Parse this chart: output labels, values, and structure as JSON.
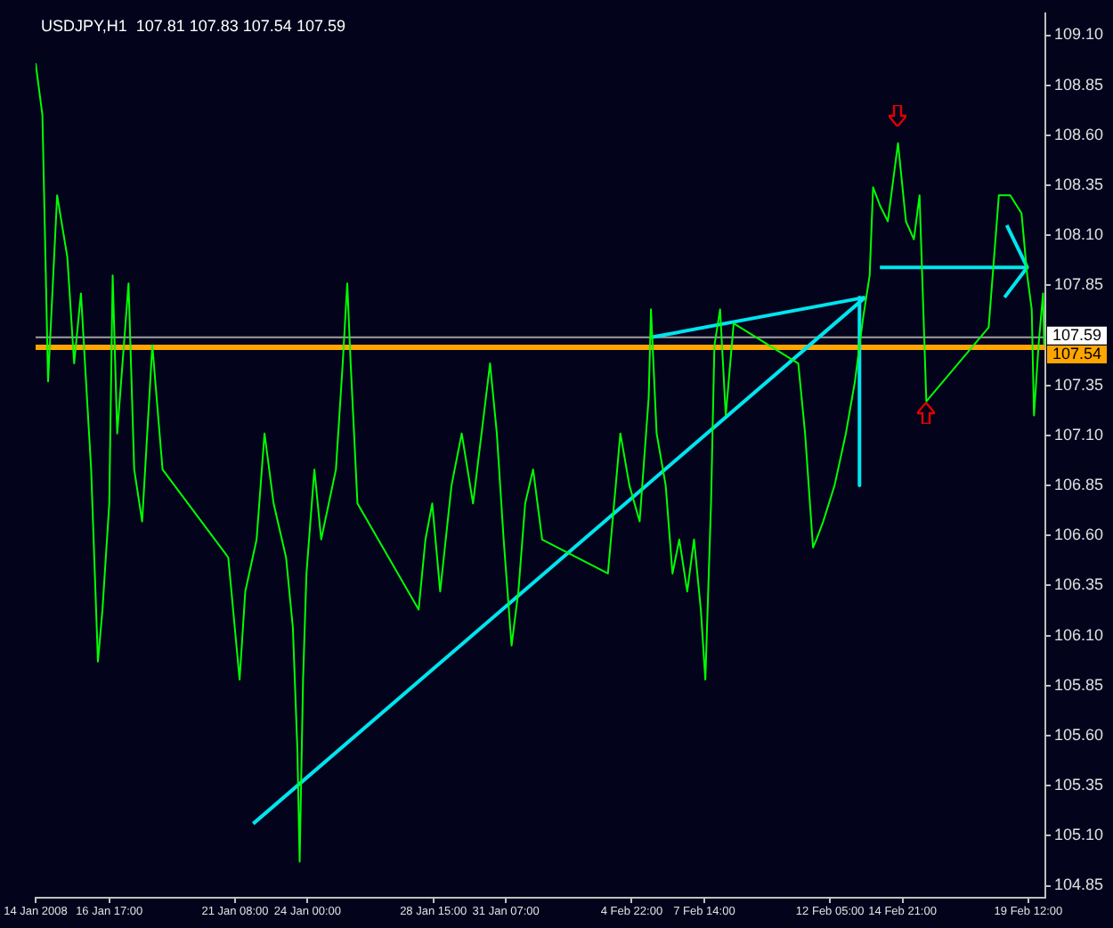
{
  "chart_data": {
    "type": "line",
    "title": "USDJPY,H1  107.81 107.83 107.54 107.59",
    "marker": "none",
    "grid": false,
    "legend": false,
    "xlim": [
      "2008-01-14T00:00",
      "2008-02-20T03:00"
    ],
    "ylim": [
      104.79,
      109.21
    ],
    "xticks": [
      {
        "value": "2008-01-14T00:00",
        "label": "14 Jan 2008"
      },
      {
        "value": "2008-01-16T17:00",
        "label": "16 Jan 17:00"
      },
      {
        "value": "2008-01-21T08:00",
        "label": "21 Jan 08:00"
      },
      {
        "value": "2008-01-24T00:00",
        "label": "24 Jan 00:00"
      },
      {
        "value": "2008-01-28T15:00",
        "label": "28 Jan 15:00"
      },
      {
        "value": "2008-01-31T07:00",
        "label": "31 Jan 07:00"
      },
      {
        "value": "2008-02-04T22:00",
        "label": "4 Feb 22:00"
      },
      {
        "value": "2008-02-07T14:00",
        "label": "7 Feb 14:00"
      },
      {
        "value": "2008-02-12T05:00",
        "label": "12 Feb 05:00"
      },
      {
        "value": "2008-02-14T21:00",
        "label": "14 Feb 21:00"
      },
      {
        "value": "2008-02-19T12:00",
        "label": "19 Feb 12:00"
      }
    ],
    "yticks": [
      {
        "value": 109.1,
        "label": "109.10"
      },
      {
        "value": 108.85,
        "label": "108.85"
      },
      {
        "value": 108.6,
        "label": "108.60"
      },
      {
        "value": 108.35,
        "label": "108.35"
      },
      {
        "value": 108.1,
        "label": "108.10"
      },
      {
        "value": 107.85,
        "label": "107.85"
      },
      {
        "value": 107.35,
        "label": "107.35"
      },
      {
        "value": 107.1,
        "label": "107.10"
      },
      {
        "value": 106.85,
        "label": "106.85"
      },
      {
        "value": 106.6,
        "label": "106.60"
      },
      {
        "value": 106.35,
        "label": "106.35"
      },
      {
        "value": 106.1,
        "label": "106.10"
      },
      {
        "value": 105.85,
        "label": "105.85"
      },
      {
        "value": 105.6,
        "label": "105.60"
      },
      {
        "value": 105.35,
        "label": "105.35"
      },
      {
        "value": 105.1,
        "label": "105.10"
      },
      {
        "value": 104.85,
        "label": "104.85"
      }
    ],
    "ref_lines": [
      {
        "axis": "y",
        "value": 107.59,
        "label": "107.59",
        "color": "#a0a0a0"
      },
      {
        "axis": "y",
        "value": 107.54,
        "label": "107.54",
        "color": "#ffa500"
      }
    ],
    "series": [
      {
        "color": "#00ff00",
        "x": [
          "2008-01-14T00:00",
          "2008-01-14T03:00",
          "2008-01-14T06:00",
          "2008-01-14T11:00",
          "2008-01-14T19:00",
          "2008-01-15T04:00",
          "2008-01-15T10:00",
          "2008-01-15T16:00",
          "2008-01-16T01:00",
          "2008-01-16T07:00",
          "2008-01-16T11:00",
          "2008-01-16T17:00",
          "2008-01-16T20:00",
          "2008-01-17T00:00",
          "2008-01-17T10:00",
          "2008-01-17T15:00",
          "2008-01-17T22:00",
          "2008-01-18T07:00",
          "2008-01-18T16:00",
          "2008-01-21T02:00",
          "2008-01-21T12:00",
          "2008-01-21T17:00",
          "2008-01-22T03:00",
          "2008-01-22T10:00",
          "2008-01-22T18:00",
          "2008-01-23T05:00",
          "2008-01-23T11:00",
          "2008-01-23T15:00",
          "2008-01-23T17:00",
          "2008-01-23T20:00",
          "2008-01-23T23:00",
          "2008-01-24T06:00",
          "2008-01-24T12:00",
          "2008-01-25T01:00",
          "2008-01-25T07:00",
          "2008-01-25T11:00",
          "2008-01-25T14:00",
          "2008-01-25T20:00",
          "2008-01-28T02:00",
          "2008-01-28T08:00",
          "2008-01-28T14:00",
          "2008-01-28T21:00",
          "2008-01-29T07:00",
          "2008-01-29T16:00",
          "2008-01-30T02:00",
          "2008-01-30T17:00",
          "2008-01-30T23:00",
          "2008-01-31T05:00",
          "2008-01-31T12:00",
          "2008-01-31T18:00",
          "2008-02-01T00:00",
          "2008-02-01T07:00",
          "2008-02-01T15:00",
          "2008-02-04T01:00",
          "2008-02-04T12:00",
          "2008-02-04T20:00",
          "2008-02-05T05:00",
          "2008-02-05T13:00",
          "2008-02-05T15:00",
          "2008-02-05T20:00",
          "2008-02-06T04:00",
          "2008-02-06T10:00",
          "2008-02-06T16:00",
          "2008-02-06T23:00",
          "2008-02-07T05:00",
          "2008-02-07T11:00",
          "2008-02-07T15:00",
          "2008-02-07T20:00",
          "2008-02-07T23:00",
          "2008-02-08T04:00",
          "2008-02-08T09:00",
          "2008-02-08T16:00",
          "2008-02-11T01:00",
          "2008-02-11T07:00",
          "2008-02-11T14:00",
          "2008-02-11T17:00",
          "2008-02-11T23:00",
          "2008-02-12T09:00",
          "2008-02-12T19:00",
          "2008-02-13T03:00",
          "2008-02-13T10:00",
          "2008-02-13T16:00",
          "2008-02-13T19:00",
          "2008-02-14T01:00",
          "2008-02-14T08:00",
          "2008-02-14T17:00",
          "2008-02-15T00:00",
          "2008-02-15T07:00",
          "2008-02-15T12:00",
          "2008-02-15T18:00",
          "2008-02-18T01:00",
          "2008-02-18T10:00",
          "2008-02-18T20:00",
          "2008-02-19T06:00",
          "2008-02-19T11:00",
          "2008-02-19T15:00",
          "2008-02-19T17:00",
          "2008-02-19T21:00",
          "2008-02-20T01:00",
          "2008-02-20T02:00"
        ],
        "values": [
          108.96,
          108.83,
          108.7,
          107.37,
          108.3,
          107.99,
          107.46,
          107.81,
          106.93,
          105.97,
          106.23,
          106.76,
          107.9,
          107.11,
          107.86,
          106.93,
          106.67,
          107.55,
          106.93,
          106.49,
          105.88,
          106.32,
          106.58,
          107.11,
          106.76,
          106.49,
          106.14,
          105.53,
          104.97,
          105.88,
          106.41,
          106.93,
          106.58,
          106.93,
          107.46,
          107.86,
          107.46,
          106.76,
          106.23,
          106.58,
          106.76,
          106.32,
          106.85,
          107.11,
          106.76,
          107.46,
          107.11,
          106.58,
          106.05,
          106.32,
          106.76,
          106.93,
          106.58,
          106.41,
          107.11,
          106.85,
          106.67,
          107.29,
          107.73,
          107.11,
          106.85,
          106.41,
          106.58,
          106.32,
          106.58,
          106.23,
          105.88,
          106.76,
          107.55,
          107.73,
          107.2,
          107.66,
          107.46,
          107.11,
          106.54,
          106.58,
          106.67,
          106.85,
          107.11,
          107.37,
          107.68,
          107.9,
          108.34,
          108.25,
          108.17,
          108.56,
          108.17,
          108.08,
          108.3,
          107.27,
          107.64,
          108.3,
          108.3,
          108.21,
          107.9,
          107.73,
          107.2,
          107.55,
          107.81,
          107.55
        ]
      },
      {
        "color": "#00e5ee",
        "x": [
          "2008-01-22T00:00",
          "2008-02-13T12:00"
        ],
        "values": [
          105.16,
          107.79
        ]
      },
      {
        "color": "#00e5ee",
        "x": [
          "2008-02-05T15:00",
          "2008-02-13T12:00"
        ],
        "values": [
          107.59,
          107.79
        ]
      },
      {
        "color": "#00e5ee",
        "x": [
          "2008-02-13T07:00",
          "2008-02-13T07:00"
        ],
        "values": [
          107.79,
          106.85
        ]
      },
      {
        "color": "#00e5ee",
        "x": [
          "2008-02-14T01:00",
          "2008-02-19T11:00"
        ],
        "values": [
          107.94,
          107.94
        ]
      },
      {
        "color": "#00e5ee",
        "x": [
          "2008-02-18T17:00",
          "2008-02-19T11:00",
          "2008-02-18T15:00"
        ],
        "values": [
          108.15,
          107.94,
          107.79
        ]
      }
    ]
  }
}
